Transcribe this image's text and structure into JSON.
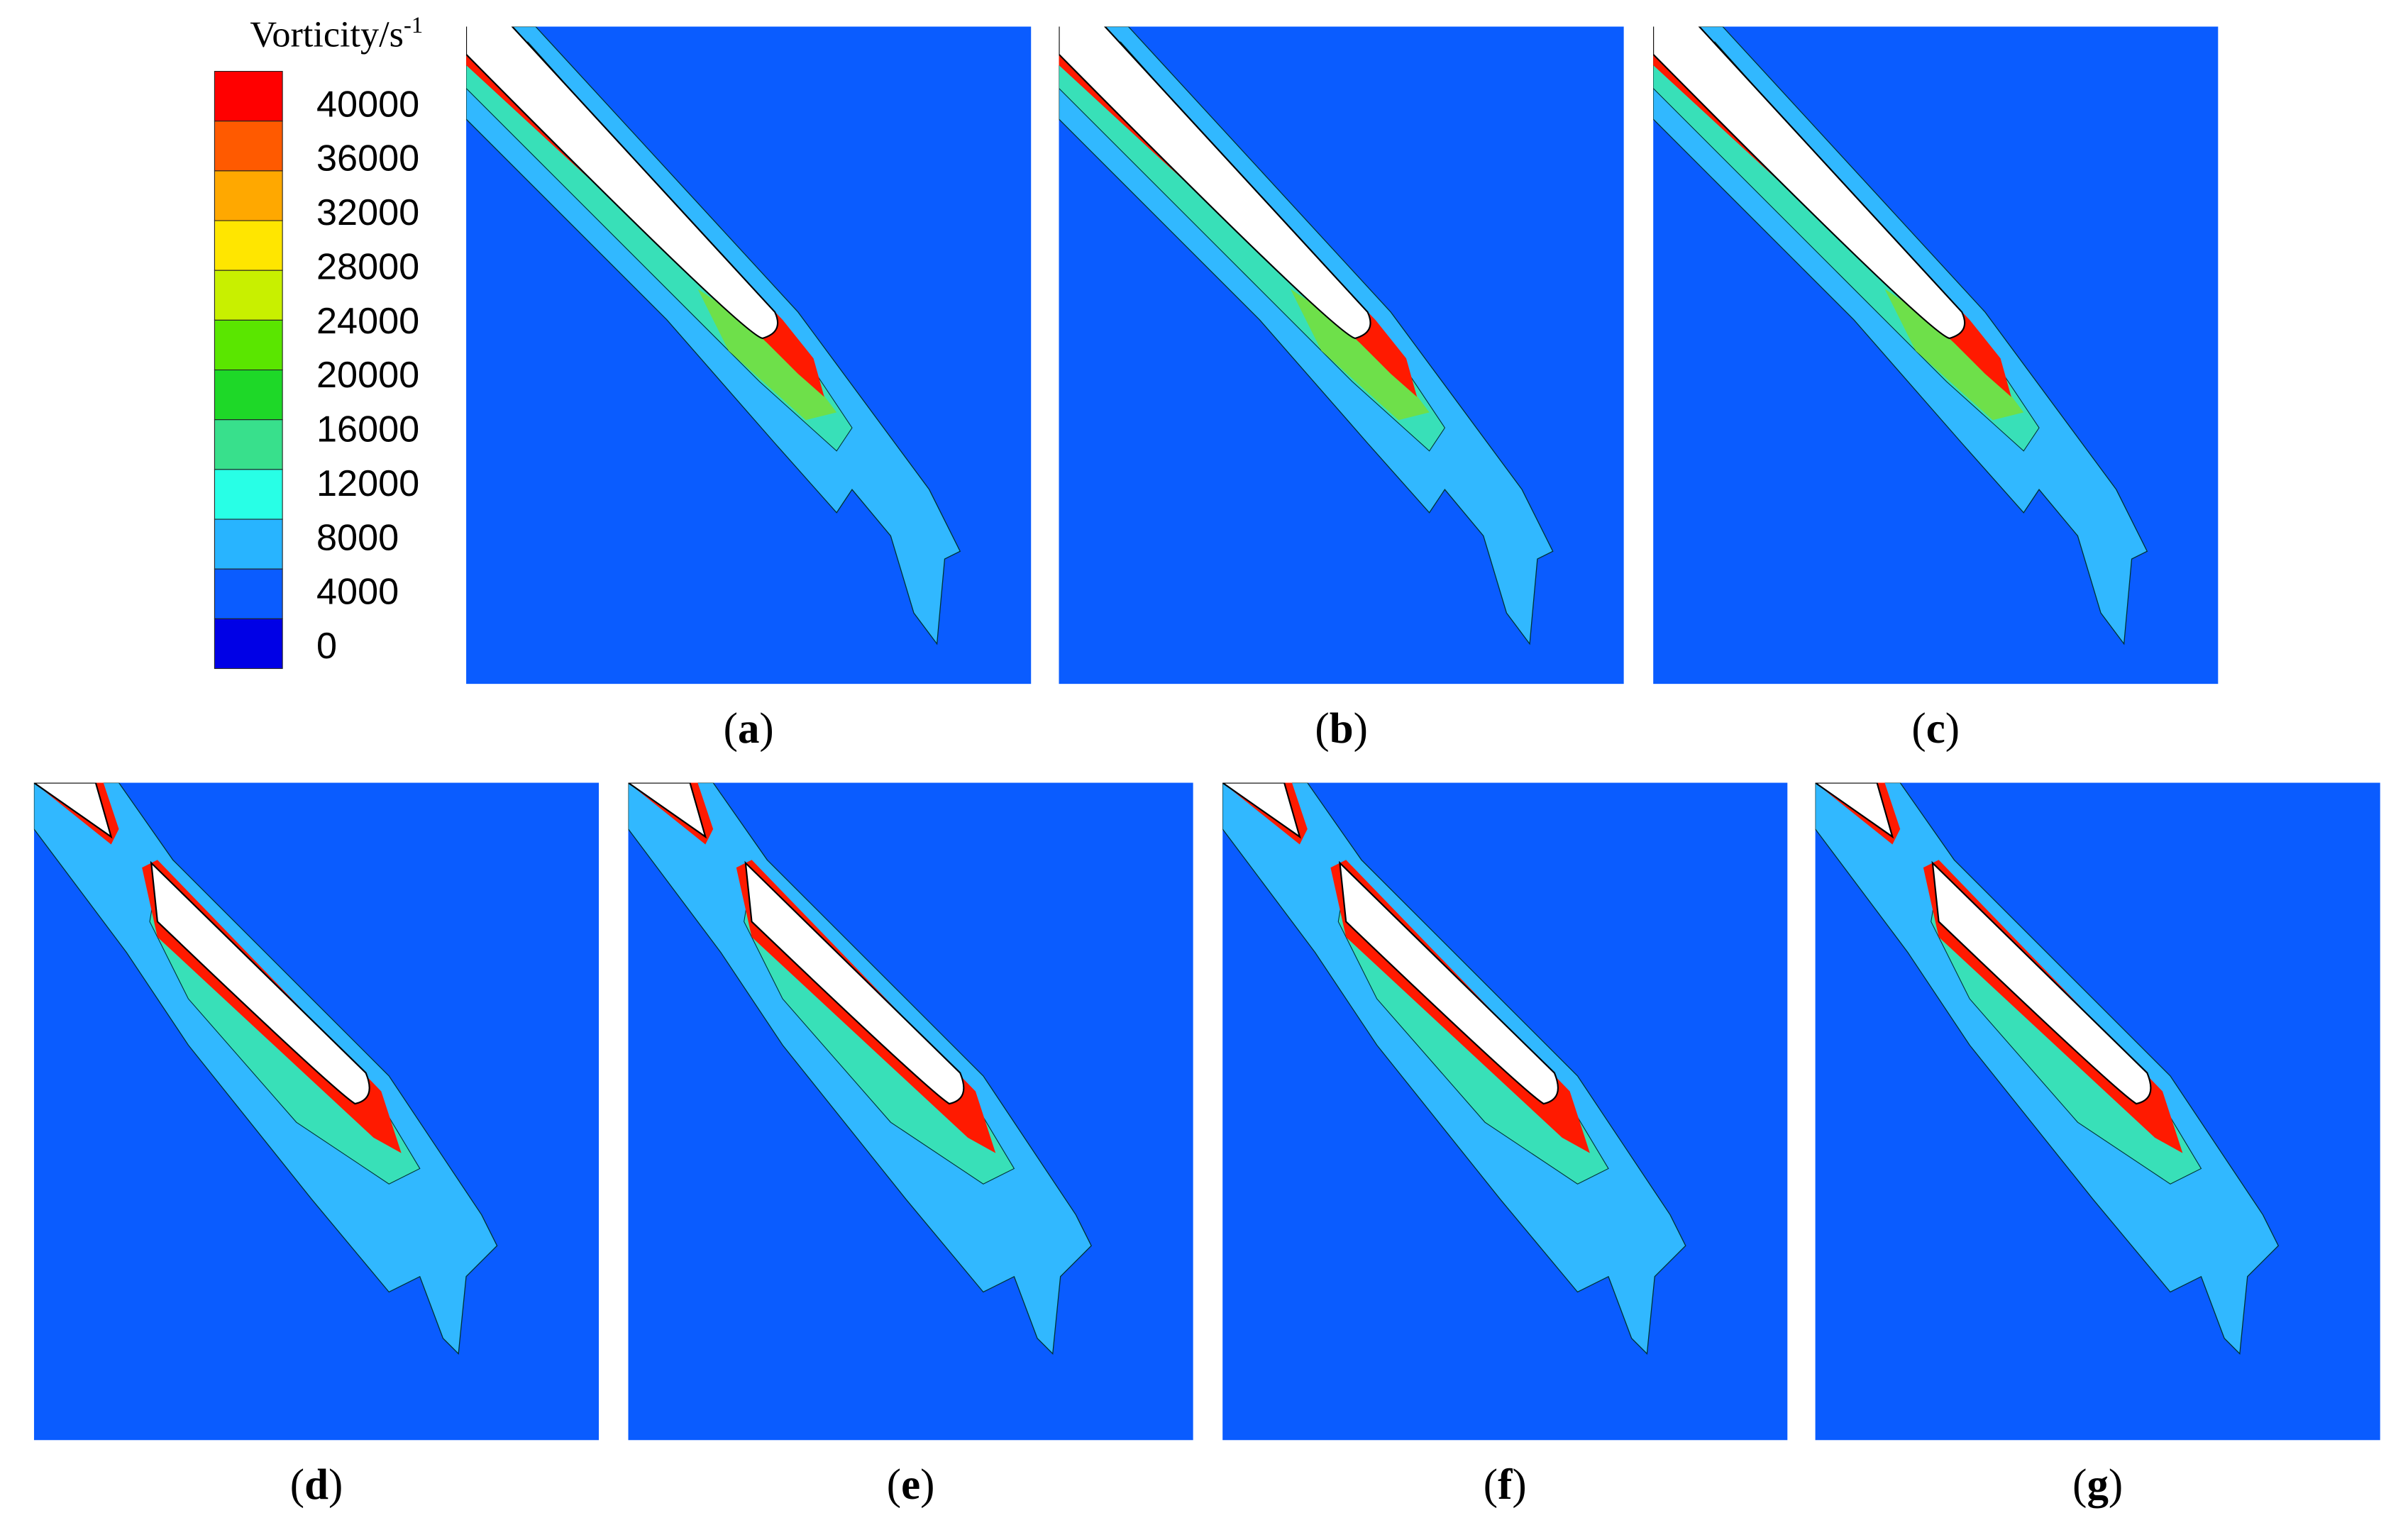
{
  "legend": {
    "title": "Vorticity/s",
    "title_exponent": "-1",
    "levels": [
      40000,
      36000,
      32000,
      28000,
      24000,
      20000,
      16000,
      12000,
      8000,
      4000,
      0
    ]
  },
  "panels": [
    {
      "label": [
        "(",
        "a",
        ")"
      ]
    },
    {
      "label": [
        "(",
        "b",
        ")"
      ]
    },
    {
      "label": [
        "(",
        "c",
        ")"
      ]
    },
    {
      "label": [
        "(",
        "d",
        ")"
      ]
    },
    {
      "label": [
        "(",
        "e",
        ")"
      ]
    },
    {
      "label": [
        "(",
        "f",
        ")"
      ]
    },
    {
      "label": [
        "(",
        "g",
        ")"
      ]
    }
  ]
}
